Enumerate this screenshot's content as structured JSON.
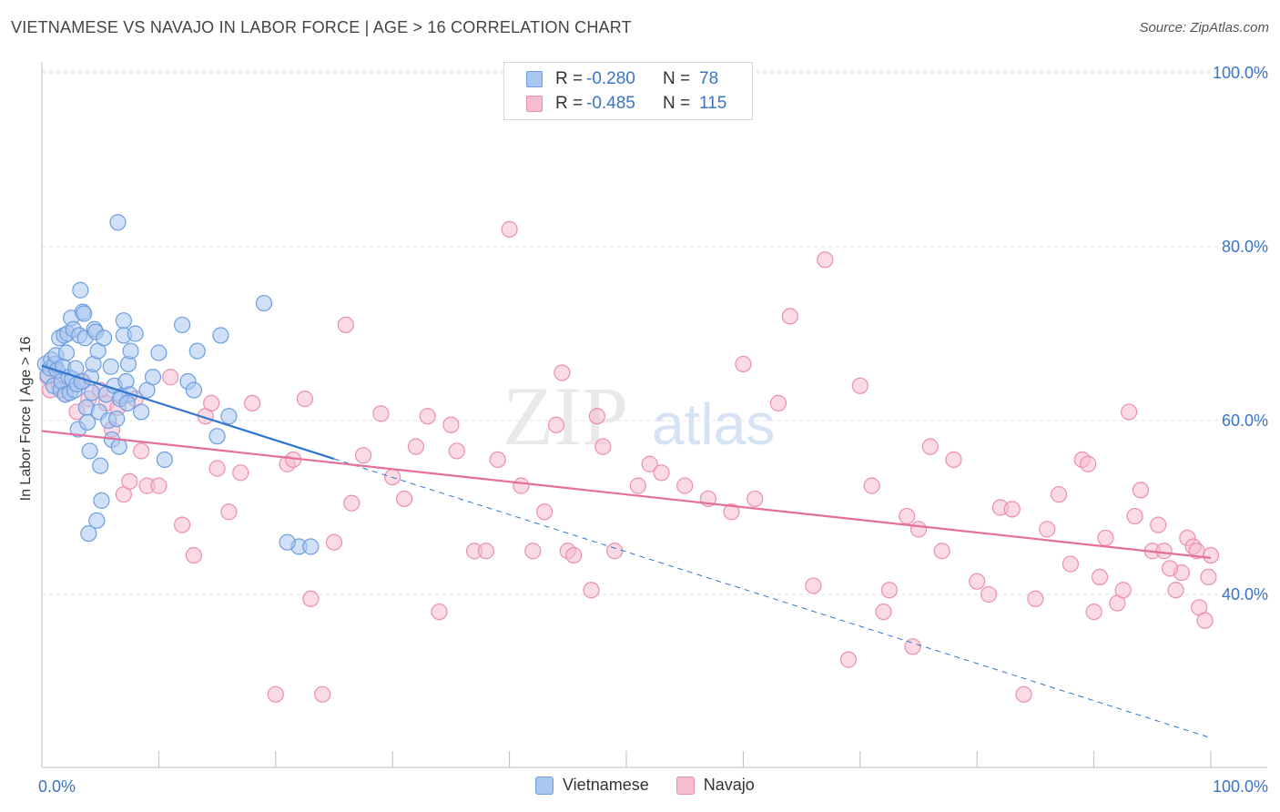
{
  "title": "VIETNAMESE VS NAVAJO IN LABOR FORCE | AGE > 16 CORRELATION CHART",
  "source": "Source: ZipAtlas.com",
  "watermark": {
    "zip": "ZIP",
    "atlas": "atlas"
  },
  "legend": {
    "rows": [
      {
        "r_label": "R =",
        "r_value": "-0.280",
        "n_label": "N =",
        "n_value": "78",
        "color": "#6fa0e0"
      },
      {
        "r_label": "R =",
        "r_value": "-0.485",
        "n_label": "N =",
        "n_value": "115",
        "color": "#f08aab"
      }
    ]
  },
  "bottom_legend": {
    "items": [
      "Vietnamese",
      "Navajo"
    ]
  },
  "colors": {
    "blue_fill": "#a9c6ef",
    "blue_stroke": "#6d9ee0",
    "blue_line": "#2f74d0",
    "pink_fill": "#f6bcd0",
    "pink_stroke": "#ec8eae",
    "pink_line": "#e4709a",
    "tick_label": "#3a74c8",
    "grid": "#e1e1e1"
  },
  "chart_data": {
    "type": "scatter",
    "title": "VIETNAMESE VS NAVAJO IN LABOR FORCE | AGE > 16 CORRELATION CHART",
    "xlabel": "",
    "ylabel": "In Labor Force | Age > 16",
    "xlim": [
      0,
      100
    ],
    "ylim": [
      22,
      103
    ],
    "x_tick_labels": [
      "0.0%",
      "100.0%"
    ],
    "y_ticks": [
      40,
      60,
      80,
      100
    ],
    "y_tick_labels": [
      "40.0%",
      "60.0%",
      "80.0%",
      "100.0%"
    ],
    "grid": true,
    "legend_position": "top-center",
    "series": [
      {
        "name": "Vietnamese",
        "trend": {
          "x": [
            0,
            25
          ],
          "y": [
            66.3,
            55.6
          ],
          "dashed_extension_to": [
            100,
            23.5
          ]
        },
        "points": [
          [
            0.3,
            66.5
          ],
          [
            0.5,
            65.2
          ],
          [
            0.7,
            66.0
          ],
          [
            0.8,
            67.0
          ],
          [
            1.0,
            64.0
          ],
          [
            1.1,
            66.5
          ],
          [
            1.2,
            67.5
          ],
          [
            1.3,
            65.8
          ],
          [
            1.5,
            69.5
          ],
          [
            1.6,
            63.5
          ],
          [
            1.7,
            64.5
          ],
          [
            1.8,
            66.2
          ],
          [
            1.9,
            69.8
          ],
          [
            2.0,
            63.0
          ],
          [
            2.1,
            67.8
          ],
          [
            2.2,
            70.0
          ],
          [
            2.3,
            65.0
          ],
          [
            2.4,
            63.2
          ],
          [
            2.5,
            71.8
          ],
          [
            2.6,
            64.8
          ],
          [
            2.7,
            70.5
          ],
          [
            2.8,
            63.5
          ],
          [
            2.9,
            66.0
          ],
          [
            3.0,
            64.2
          ],
          [
            3.1,
            59.0
          ],
          [
            3.2,
            69.8
          ],
          [
            3.3,
            75.0
          ],
          [
            3.4,
            64.5
          ],
          [
            3.5,
            72.5
          ],
          [
            3.6,
            72.3
          ],
          [
            3.7,
            69.5
          ],
          [
            3.8,
            61.5
          ],
          [
            3.9,
            59.8
          ],
          [
            4.0,
            47.0
          ],
          [
            4.1,
            56.5
          ],
          [
            4.2,
            65.0
          ],
          [
            4.3,
            63.2
          ],
          [
            4.4,
            66.5
          ],
          [
            4.5,
            70.5
          ],
          [
            4.6,
            70.2
          ],
          [
            4.7,
            48.5
          ],
          [
            4.8,
            68.0
          ],
          [
            4.9,
            61.0
          ],
          [
            5.0,
            54.8
          ],
          [
            5.1,
            50.8
          ],
          [
            5.3,
            69.5
          ],
          [
            5.5,
            63.0
          ],
          [
            5.7,
            60.0
          ],
          [
            5.9,
            66.2
          ],
          [
            6.0,
            57.8
          ],
          [
            6.2,
            64.0
          ],
          [
            6.4,
            60.2
          ],
          [
            6.6,
            57.0
          ],
          [
            6.8,
            62.8
          ],
          [
            7.0,
            71.5
          ],
          [
            7.2,
            64.5
          ],
          [
            7.4,
            66.5
          ],
          [
            7.5,
            63.0
          ],
          [
            6.5,
            82.8
          ],
          [
            6.7,
            62.5
          ],
          [
            7.0,
            69.8
          ],
          [
            7.3,
            62.0
          ],
          [
            7.6,
            68.0
          ],
          [
            8.0,
            70.0
          ],
          [
            8.5,
            61.0
          ],
          [
            9.0,
            63.5
          ],
          [
            9.5,
            65.0
          ],
          [
            10.0,
            67.8
          ],
          [
            10.5,
            55.5
          ],
          [
            12.0,
            71.0
          ],
          [
            12.5,
            64.5
          ],
          [
            13.0,
            63.5
          ],
          [
            13.3,
            68.0
          ],
          [
            15.0,
            58.2
          ],
          [
            15.3,
            69.8
          ],
          [
            16.0,
            60.5
          ],
          [
            19.0,
            73.5
          ],
          [
            22.0,
            45.5
          ],
          [
            23.0,
            45.5
          ],
          [
            21.0,
            46.0
          ]
        ]
      },
      {
        "name": "Navajo",
        "trend": {
          "x": [
            0,
            100
          ],
          "y": [
            58.8,
            44.2
          ]
        },
        "points": [
          [
            0.5,
            65.0
          ],
          [
            0.7,
            63.5
          ],
          [
            1.0,
            66.0
          ],
          [
            1.5,
            64.0
          ],
          [
            2.0,
            63.0
          ],
          [
            3.0,
            61.0
          ],
          [
            3.5,
            64.5
          ],
          [
            4.0,
            62.5
          ],
          [
            5.0,
            63.5
          ],
          [
            5.5,
            62.0
          ],
          [
            6.0,
            59.0
          ],
          [
            6.5,
            61.5
          ],
          [
            7.0,
            51.5
          ],
          [
            7.5,
            53.0
          ],
          [
            8.0,
            62.5
          ],
          [
            8.5,
            56.5
          ],
          [
            9.0,
            52.5
          ],
          [
            10.0,
            52.5
          ],
          [
            11.0,
            65.0
          ],
          [
            12.0,
            48.0
          ],
          [
            13.0,
            44.5
          ],
          [
            14.0,
            60.5
          ],
          [
            14.5,
            62.0
          ],
          [
            15.0,
            54.5
          ],
          [
            16.0,
            49.5
          ],
          [
            17.0,
            54.0
          ],
          [
            18.0,
            62.0
          ],
          [
            20.0,
            28.5
          ],
          [
            21.0,
            55.0
          ],
          [
            21.5,
            55.5
          ],
          [
            22.5,
            62.5
          ],
          [
            23.0,
            39.5
          ],
          [
            24.0,
            28.5
          ],
          [
            25.0,
            46.0
          ],
          [
            26.0,
            71.0
          ],
          [
            26.5,
            50.5
          ],
          [
            27.5,
            56.0
          ],
          [
            29.0,
            60.8
          ],
          [
            30.0,
            53.5
          ],
          [
            31.0,
            51.0
          ],
          [
            32.0,
            57.0
          ],
          [
            33.0,
            60.5
          ],
          [
            34.0,
            38.0
          ],
          [
            35.0,
            59.5
          ],
          [
            35.5,
            56.5
          ],
          [
            37.0,
            45.0
          ],
          [
            38.0,
            45.0
          ],
          [
            39.0,
            55.5
          ],
          [
            41.0,
            52.5
          ],
          [
            42.0,
            45.0
          ],
          [
            43.0,
            49.5
          ],
          [
            44.0,
            59.5
          ],
          [
            44.5,
            65.5
          ],
          [
            45.0,
            45.0
          ],
          [
            45.5,
            44.5
          ],
          [
            47.0,
            40.5
          ],
          [
            47.5,
            60.5
          ],
          [
            48.0,
            57.0
          ],
          [
            49.0,
            45.0
          ],
          [
            40.0,
            82.0
          ],
          [
            51.0,
            52.5
          ],
          [
            52.0,
            55.0
          ],
          [
            53.0,
            54.0
          ],
          [
            55.0,
            52.5
          ],
          [
            57.0,
            51.0
          ],
          [
            59.0,
            49.5
          ],
          [
            60.0,
            66.5
          ],
          [
            61.0,
            51.0
          ],
          [
            63.0,
            62.0
          ],
          [
            64.0,
            72.0
          ],
          [
            66.0,
            41.0
          ],
          [
            67.0,
            78.5
          ],
          [
            69.0,
            32.5
          ],
          [
            70.0,
            64.0
          ],
          [
            71.0,
            52.5
          ],
          [
            72.0,
            38.0
          ],
          [
            72.5,
            40.5
          ],
          [
            74.0,
            49.0
          ],
          [
            74.5,
            34.0
          ],
          [
            75.0,
            47.5
          ],
          [
            76.0,
            57.0
          ],
          [
            77.0,
            45.0
          ],
          [
            78.0,
            55.5
          ],
          [
            80.0,
            41.5
          ],
          [
            81.0,
            40.0
          ],
          [
            82.0,
            50.0
          ],
          [
            83.0,
            49.8
          ],
          [
            84.0,
            28.5
          ],
          [
            85.0,
            39.5
          ],
          [
            86.0,
            47.5
          ],
          [
            87.0,
            51.5
          ],
          [
            88.0,
            43.5
          ],
          [
            89.0,
            55.5
          ],
          [
            89.5,
            55.0
          ],
          [
            90.0,
            38.0
          ],
          [
            90.5,
            42.0
          ],
          [
            91.0,
            46.5
          ],
          [
            92.0,
            39.0
          ],
          [
            92.5,
            40.5
          ],
          [
            93.0,
            61.0
          ],
          [
            93.5,
            49.0
          ],
          [
            94.0,
            52.0
          ],
          [
            95.0,
            45.0
          ],
          [
            95.5,
            48.0
          ],
          [
            96.0,
            45.0
          ],
          [
            97.0,
            40.5
          ],
          [
            97.5,
            42.5
          ],
          [
            98.0,
            46.5
          ],
          [
            98.5,
            45.5
          ],
          [
            99.0,
            38.5
          ],
          [
            99.5,
            37.0
          ],
          [
            100.0,
            44.5
          ],
          [
            99.8,
            42.0
          ],
          [
            98.8,
            45.0
          ],
          [
            96.5,
            43.0
          ]
        ]
      }
    ]
  }
}
